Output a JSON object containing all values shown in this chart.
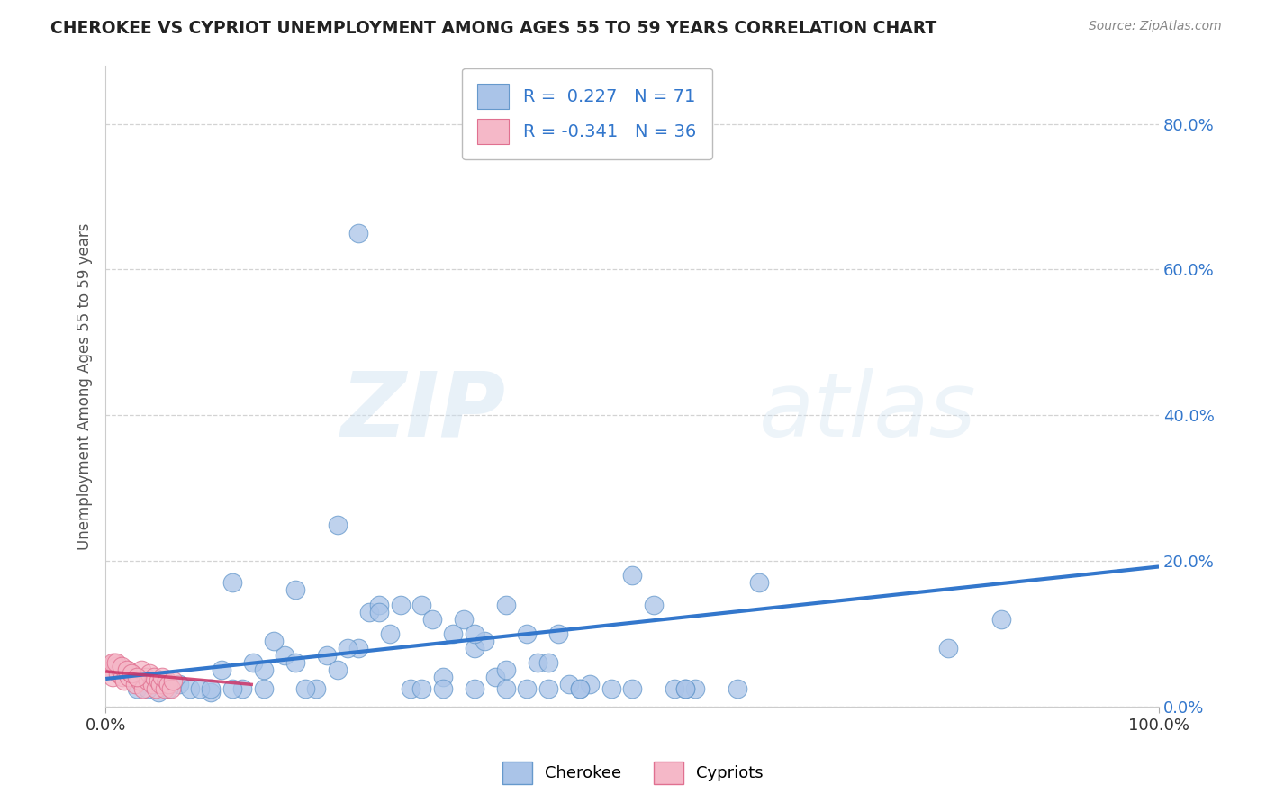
{
  "title": "CHEROKEE VS CYPRIOT UNEMPLOYMENT AMONG AGES 55 TO 59 YEARS CORRELATION CHART",
  "source": "Source: ZipAtlas.com",
  "ylabel": "Unemployment Among Ages 55 to 59 years",
  "ytick_labels": [
    "0.0%",
    "20.0%",
    "40.0%",
    "60.0%",
    "80.0%"
  ],
  "ytick_values": [
    0.0,
    0.2,
    0.4,
    0.6,
    0.8
  ],
  "xlim": [
    0,
    1.0
  ],
  "ylim": [
    0,
    0.88
  ],
  "cherokee_R": 0.227,
  "cherokee_N": 71,
  "cypriot_R": -0.341,
  "cypriot_N": 36,
  "cherokee_color": "#aac4e8",
  "cherokee_edge": "#6699cc",
  "cypriot_color": "#f5b8c8",
  "cypriot_edge": "#e07090",
  "trendline_cherokee_color": "#3377cc",
  "trendline_cypriot_color": "#cc3366",
  "background_color": "#ffffff",
  "grid_color": "#c8c8c8",
  "cherokee_trend_x0": 0.0,
  "cherokee_trend_y0": 0.038,
  "cherokee_trend_x1": 1.0,
  "cherokee_trend_y1": 0.192,
  "cypriot_trend_x0": 0.0,
  "cypriot_trend_y0": 0.048,
  "cypriot_trend_x1": 0.14,
  "cypriot_trend_y1": 0.03,
  "cherokee_points_x": [
    0.24,
    0.05,
    0.07,
    0.1,
    0.12,
    0.14,
    0.15,
    0.17,
    0.18,
    0.2,
    0.21,
    0.22,
    0.24,
    0.25,
    0.26,
    0.27,
    0.28,
    0.3,
    0.31,
    0.32,
    0.33,
    0.34,
    0.35,
    0.36,
    0.37,
    0.38,
    0.4,
    0.41,
    0.42,
    0.43,
    0.44,
    0.46,
    0.48,
    0.5,
    0.52,
    0.54,
    0.56,
    0.6,
    0.8,
    0.85,
    0.03,
    0.04,
    0.06,
    0.08,
    0.09,
    0.11,
    0.13,
    0.16,
    0.19,
    0.23,
    0.29,
    0.32,
    0.35,
    0.38,
    0.4,
    0.42,
    0.45,
    0.5,
    0.55,
    0.62,
    0.1,
    0.12,
    0.15,
    0.18,
    0.22,
    0.26,
    0.3,
    0.35,
    0.45,
    0.55,
    0.38
  ],
  "cherokee_points_y": [
    0.65,
    0.02,
    0.03,
    0.02,
    0.17,
    0.06,
    0.05,
    0.07,
    0.06,
    0.025,
    0.07,
    0.05,
    0.08,
    0.13,
    0.14,
    0.1,
    0.14,
    0.14,
    0.12,
    0.04,
    0.1,
    0.12,
    0.08,
    0.09,
    0.04,
    0.025,
    0.025,
    0.06,
    0.06,
    0.1,
    0.03,
    0.03,
    0.025,
    0.18,
    0.14,
    0.025,
    0.025,
    0.025,
    0.08,
    0.12,
    0.025,
    0.025,
    0.025,
    0.025,
    0.025,
    0.05,
    0.025,
    0.09,
    0.025,
    0.08,
    0.025,
    0.025,
    0.1,
    0.05,
    0.1,
    0.025,
    0.025,
    0.025,
    0.025,
    0.17,
    0.025,
    0.025,
    0.025,
    0.16,
    0.25,
    0.13,
    0.025,
    0.025,
    0.025,
    0.025,
    0.14
  ],
  "cypriot_points_x": [
    0.005,
    0.007,
    0.008,
    0.01,
    0.012,
    0.014,
    0.016,
    0.018,
    0.02,
    0.022,
    0.025,
    0.028,
    0.03,
    0.032,
    0.034,
    0.036,
    0.038,
    0.04,
    0.042,
    0.044,
    0.046,
    0.048,
    0.05,
    0.052,
    0.054,
    0.056,
    0.058,
    0.06,
    0.062,
    0.064,
    0.007,
    0.01,
    0.015,
    0.02,
    0.025,
    0.03
  ],
  "cypriot_points_y": [
    0.05,
    0.04,
    0.06,
    0.055,
    0.045,
    0.05,
    0.04,
    0.035,
    0.05,
    0.04,
    0.045,
    0.03,
    0.04,
    0.035,
    0.05,
    0.025,
    0.04,
    0.035,
    0.045,
    0.03,
    0.04,
    0.025,
    0.035,
    0.03,
    0.04,
    0.025,
    0.035,
    0.03,
    0.025,
    0.035,
    0.06,
    0.06,
    0.055,
    0.05,
    0.045,
    0.04
  ]
}
